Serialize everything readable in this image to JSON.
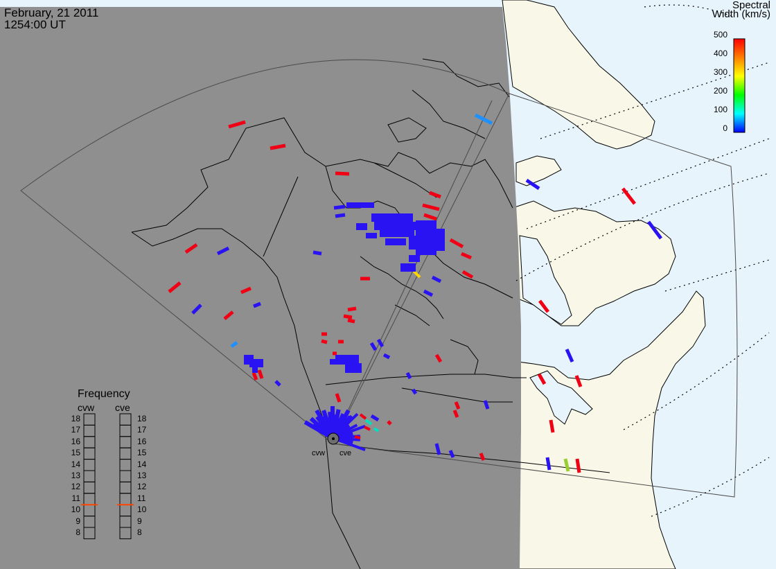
{
  "header": {
    "date": "February, 21 2011",
    "time": "1254:00 UT"
  },
  "colorbar": {
    "title_line1": "Spectral",
    "title_line2": "Width (km/s)",
    "ticks": [
      "500",
      "400",
      "300",
      "200",
      "100",
      "0"
    ],
    "stops": [
      "#ff0000",
      "#ff7f00",
      "#ffff00",
      "#00ff00",
      "#00ffff",
      "#0000ff"
    ]
  },
  "frequency_panel": {
    "title": "Frequency",
    "radar_left": "cvw",
    "radar_right": "cve",
    "levels": [
      "18",
      "17",
      "16",
      "15",
      "14",
      "13",
      "12",
      "11",
      "10",
      "9",
      "8"
    ],
    "cvw_value": 10.5,
    "cve_value": 10.5,
    "marker_color": "#ff4500"
  },
  "radars": {
    "left": "cvw",
    "right": "cve"
  },
  "colors": {
    "night": "#8f8f8f",
    "day_land": "#f8f7e8",
    "day_ocean": "#e8f4fc",
    "low_width": "#2a13f2",
    "high_width": "#f00014"
  }
}
